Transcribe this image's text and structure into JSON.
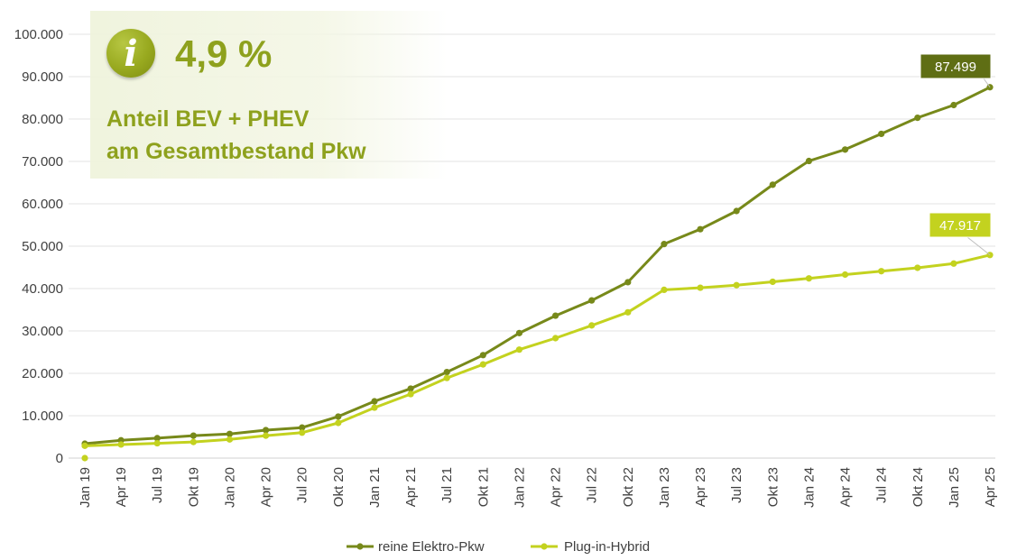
{
  "info_box": {
    "icon_letter": "i",
    "value": "4,9 %",
    "line1": "Anteil BEV + PHEV",
    "line2": "am Gesamtbestand Pkw"
  },
  "chart_data": {
    "type": "line",
    "title": "",
    "xlabel": "",
    "ylabel": "",
    "ylim": [
      0,
      100000
    ],
    "grid": true,
    "legend": "bottom",
    "yticks": [
      {
        "value": 0,
        "label": "0"
      },
      {
        "value": 10000,
        "label": "10.000"
      },
      {
        "value": 20000,
        "label": "20.000"
      },
      {
        "value": 30000,
        "label": "30.000"
      },
      {
        "value": 40000,
        "label": "40.000"
      },
      {
        "value": 50000,
        "label": "50.000"
      },
      {
        "value": 60000,
        "label": "60.000"
      },
      {
        "value": 70000,
        "label": "70.000"
      },
      {
        "value": 80000,
        "label": "80.000"
      },
      {
        "value": 90000,
        "label": "90.000"
      },
      {
        "value": 100000,
        "label": "100.000"
      }
    ],
    "categories": [
      "Jan 19",
      "Apr 19",
      "Jul 19",
      "Okt 19",
      "Jan 20",
      "Apr 20",
      "Jul 20",
      "Okt 20",
      "Jan 21",
      "Apr 21",
      "Jul 21",
      "Okt 21",
      "Jan 22",
      "Apr 22",
      "Jul 22",
      "Okt 22",
      "Jan 23",
      "Apr 23",
      "Jul 23",
      "Okt 23",
      "Jan 24",
      "Apr 24",
      "Jul 24",
      "Okt 24",
      "Jan 25",
      "Apr 25"
    ],
    "series": [
      {
        "name": "reine Elektro-Pkw",
        "color": "#77891a",
        "values": [
          3400,
          4200,
          4700,
          5300,
          5700,
          6600,
          7200,
          9800,
          13400,
          16400,
          20300,
          24300,
          29500,
          33600,
          37200,
          41500,
          50500,
          54000,
          58300,
          64500,
          70100,
          72800,
          76500,
          80300,
          83300,
          87499
        ],
        "end_label": "87.499"
      },
      {
        "name": "Plug-in-Hybrid",
        "color": "#c3d21f",
        "values": [
          2900,
          3200,
          3500,
          3800,
          4400,
          5300,
          6000,
          8300,
          11900,
          15100,
          18900,
          22100,
          25600,
          28300,
          31300,
          34400,
          39700,
          40200,
          40800,
          41600,
          42400,
          43300,
          44100,
          44900,
          45900,
          47917
        ],
        "end_label": "47.917",
        "extra_point": {
          "category_index": 0,
          "value": 0
        }
      }
    ]
  }
}
